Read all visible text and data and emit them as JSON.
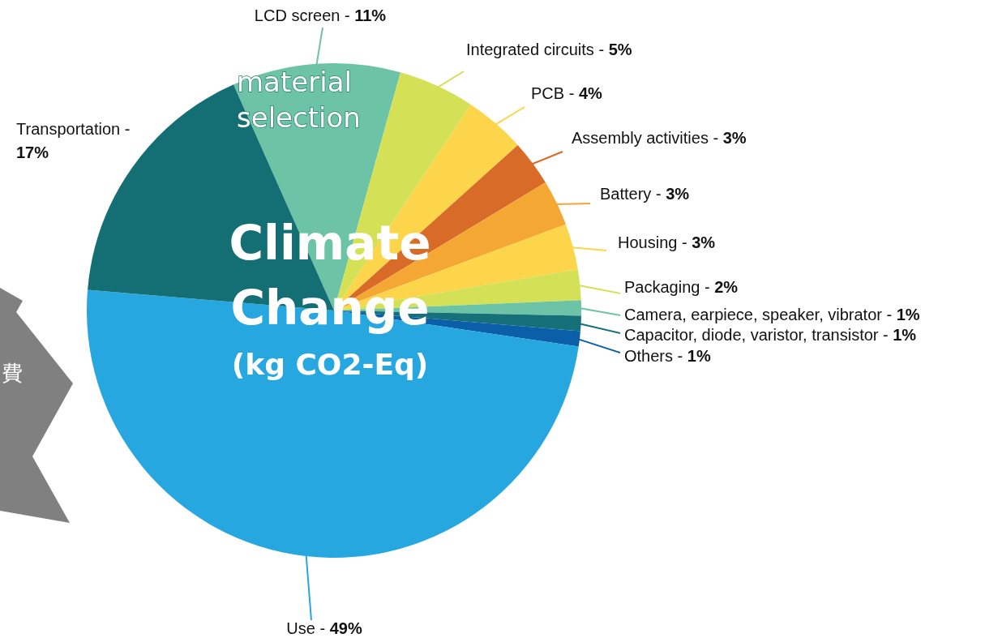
{
  "chart_data": {
    "type": "pie",
    "title": "Climate Change",
    "subtitle": "(kg CO2-Eq)",
    "categories": [
      "LCD screen -",
      "Integrated circuits -",
      "PCB -",
      "Assembly activities -",
      "Battery -",
      "Housing -",
      "Packaging -",
      "Camera, earpiece, speaker, vibrator -",
      "Capacitor, diode, varistor, transistor -",
      "Others -",
      "Use -",
      "Transportation -"
    ],
    "values": [
      11,
      5,
      4,
      3,
      3,
      3,
      2,
      1,
      1,
      1,
      49,
      17
    ],
    "value_labels": [
      "11%",
      "5%",
      "4%",
      "3%",
      "3%",
      "3%",
      "2%",
      "1%",
      "1%",
      "1%",
      "49%",
      "17%"
    ],
    "colors": [
      "#6cc3a5",
      "#d4e157",
      "#fdd54a",
      "#d86b28",
      "#f5a733",
      "#fdd54a",
      "#d4e157",
      "#6cc3a5",
      "#15707a",
      "#0b5ea8",
      "#27a7e0",
      "#146f75"
    ],
    "annotations": [
      "material selection",
      "費"
    ],
    "legend": false
  }
}
